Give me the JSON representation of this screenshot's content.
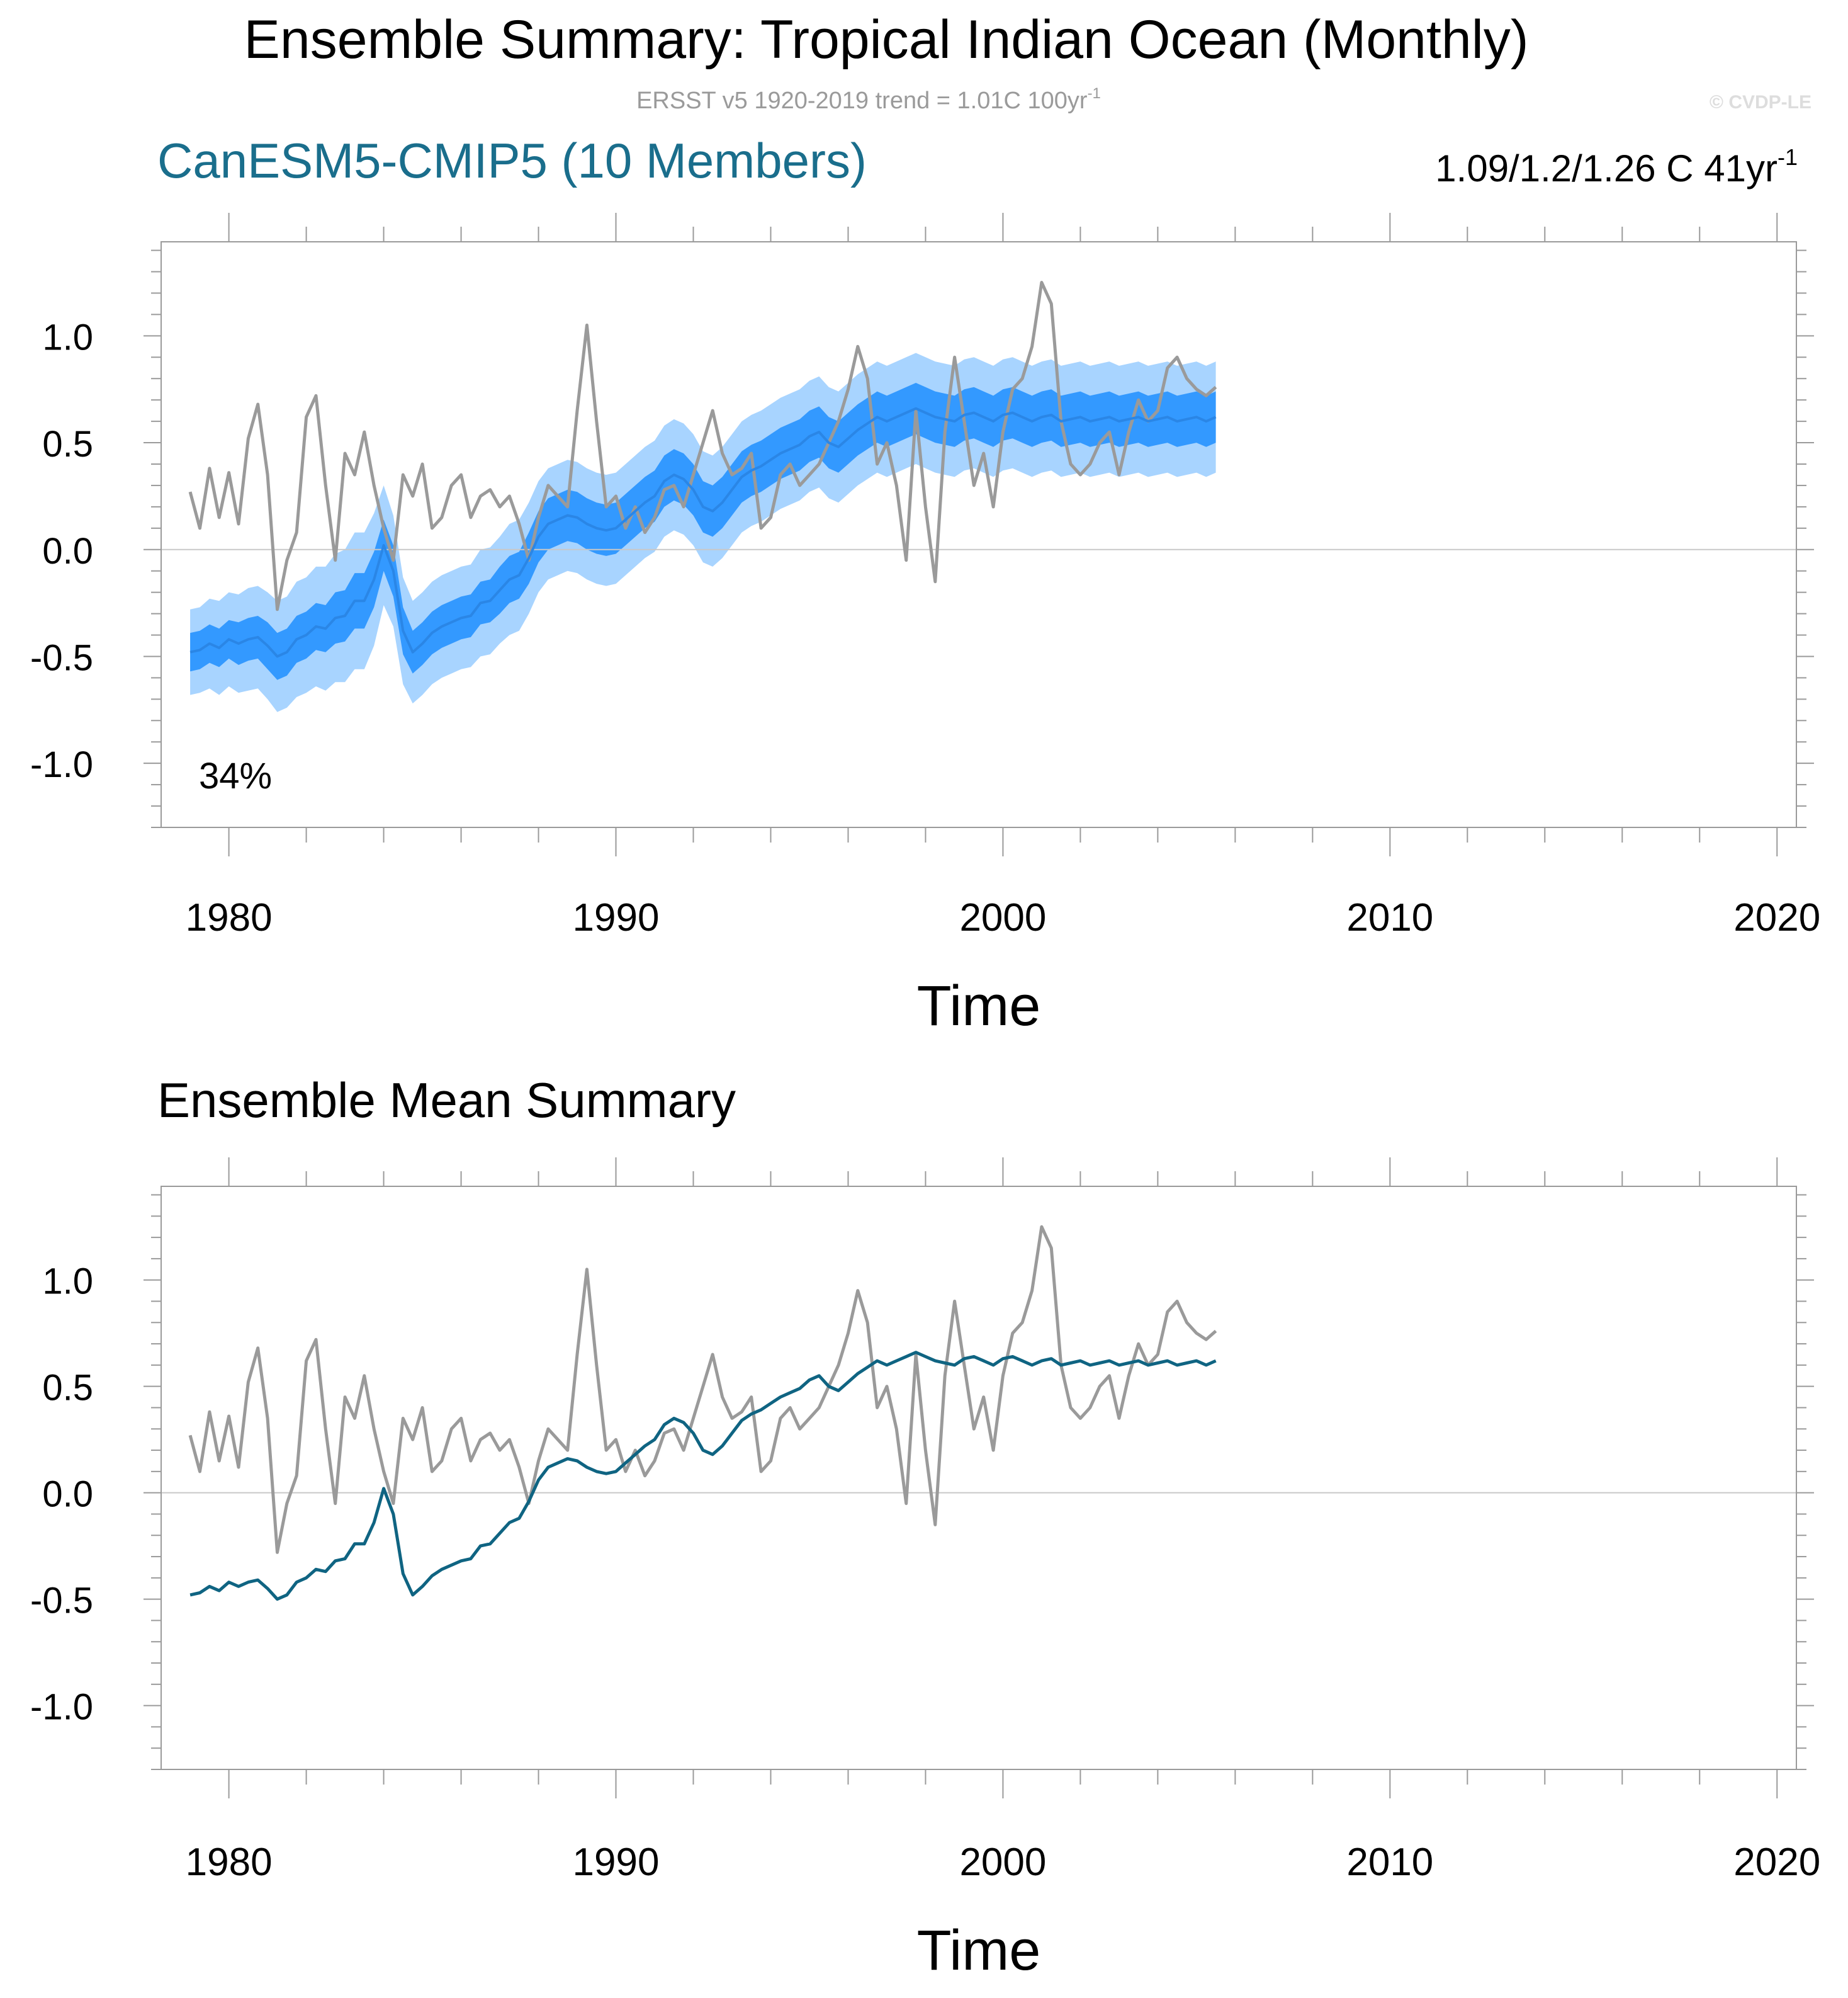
{
  "header": {
    "title": "Ensemble Summary: Tropical Indian Ocean (Monthly)",
    "subtitle_main": "ERSST v5 1920-2019 trend = 1.01C 100yr",
    "subtitle_sup": "-1",
    "watermark": "© CVDP-LE"
  },
  "colors": {
    "obs": "#9a9a9a",
    "spread_outer": "#a8d4ff",
    "spread_inner": "#3399ff",
    "ens_mean_top": "#2a86e6",
    "ens_mean_bottom": "#0f6482",
    "model_title": "#1a6e8c",
    "zero_line": "#c8c8c8",
    "frame": "#9a9a9a"
  },
  "chart_data": [
    {
      "type": "line",
      "panel": "top",
      "model_title": "CanESM5-CMIP5 (10 Members)",
      "trend_text_main": "1.09/1.2/1.26 C 41yr",
      "trend_text_sup": "-1",
      "annotation": "34%",
      "xlabel": "Time",
      "ylabel": "",
      "xlim": [
        1978.25,
        2020.5
      ],
      "ylim": [
        -1.3,
        1.44
      ],
      "xticks": [
        1980,
        1990,
        2000,
        2010,
        2020
      ],
      "xtick_labels": [
        "1980",
        "1990",
        "2000",
        "2010",
        "2020"
      ],
      "yticks": [
        -1.0,
        -0.5,
        0.0,
        0.5,
        1.0
      ],
      "ytick_labels": [
        "-1.0",
        "-0.5",
        "0.0",
        "0.5",
        "1.0"
      ],
      "series": [
        {
          "name": "ERSST v5 observations",
          "color": "gray"
        },
        {
          "name": "Ensemble 10-90% range",
          "color": "light blue",
          "kind": "band"
        },
        {
          "name": "Ensemble 25-75% range",
          "color": "blue",
          "kind": "band"
        },
        {
          "name": "Ensemble mean",
          "color": "blue"
        }
      ]
    },
    {
      "type": "line",
      "panel": "bottom",
      "title": "Ensemble Mean Summary",
      "xlabel": "Time",
      "ylabel": "",
      "xlim": [
        1978.25,
        2020.5
      ],
      "ylim": [
        -1.3,
        1.44
      ],
      "xticks": [
        1980,
        1990,
        2000,
        2010,
        2020
      ],
      "xtick_labels": [
        "1980",
        "1990",
        "2000",
        "2010",
        "2020"
      ],
      "yticks": [
        -1.0,
        -0.5,
        0.0,
        0.5,
        1.0
      ],
      "ytick_labels": [
        "-1.0",
        "-0.5",
        "0.0",
        "0.5",
        "1.0"
      ],
      "series": [
        {
          "name": "ERSST v5 observations",
          "color": "gray"
        },
        {
          "name": "Ensemble mean",
          "color": "dark teal"
        }
      ]
    }
  ],
  "series_data": {
    "x_start": 1979.0,
    "x_step": 0.25,
    "obs": [
      0.27,
      0.1,
      0.38,
      0.15,
      0.36,
      0.12,
      0.52,
      0.68,
      0.35,
      -0.28,
      -0.05,
      0.08,
      0.62,
      0.72,
      0.3,
      -0.05,
      0.45,
      0.35,
      0.55,
      0.3,
      0.1,
      -0.05,
      0.35,
      0.25,
      0.4,
      0.1,
      0.15,
      0.3,
      0.35,
      0.15,
      0.25,
      0.28,
      0.2,
      0.25,
      0.12,
      -0.05,
      0.15,
      0.3,
      0.25,
      0.2,
      0.65,
      1.05,
      0.6,
      0.2,
      0.25,
      0.1,
      0.2,
      0.08,
      0.15,
      0.28,
      0.3,
      0.2,
      0.35,
      0.5,
      0.65,
      0.45,
      0.35,
      0.38,
      0.45,
      0.1,
      0.15,
      0.35,
      0.4,
      0.3,
      0.35,
      0.4,
      0.5,
      0.6,
      0.75,
      0.95,
      0.8,
      0.4,
      0.5,
      0.3,
      -0.05,
      0.65,
      0.2,
      -0.15,
      0.55,
      0.9,
      0.6,
      0.3,
      0.45,
      0.2,
      0.55,
      0.75,
      0.8,
      0.95,
      1.25,
      1.15,
      0.6,
      0.4,
      0.35,
      0.4,
      0.5,
      0.55,
      0.35,
      0.55,
      0.7,
      0.6,
      0.65,
      0.85,
      0.9,
      0.8,
      0.75,
      0.72,
      0.76
    ],
    "ens_mean": [
      -0.48,
      -0.47,
      -0.44,
      -0.46,
      -0.42,
      -0.44,
      -0.42,
      -0.41,
      -0.45,
      -0.5,
      -0.48,
      -0.42,
      -0.4,
      -0.36,
      -0.37,
      -0.32,
      -0.31,
      -0.24,
      -0.24,
      -0.14,
      0.02,
      -0.1,
      -0.38,
      -0.48,
      -0.44,
      -0.39,
      -0.36,
      -0.34,
      -0.32,
      -0.31,
      -0.25,
      -0.24,
      -0.19,
      -0.14,
      -0.12,
      -0.04,
      0.06,
      0.12,
      0.14,
      0.16,
      0.15,
      0.12,
      0.1,
      0.09,
      0.1,
      0.14,
      0.18,
      0.22,
      0.25,
      0.32,
      0.35,
      0.33,
      0.28,
      0.2,
      0.18,
      0.22,
      0.28,
      0.34,
      0.37,
      0.39,
      0.42,
      0.45,
      0.47,
      0.49,
      0.53,
      0.55,
      0.5,
      0.48,
      0.52,
      0.56,
      0.59,
      0.62,
      0.6,
      0.62,
      0.64,
      0.66,
      0.64,
      0.62,
      0.61,
      0.6,
      0.63,
      0.64,
      0.62,
      0.6,
      0.63,
      0.64,
      0.62,
      0.6,
      0.62,
      0.63,
      0.6,
      0.61,
      0.62,
      0.6,
      0.61,
      0.62,
      0.6,
      0.61,
      0.62,
      0.6,
      0.61,
      0.62,
      0.6,
      0.61,
      0.62,
      0.6,
      0.62
    ],
    "inner_halfwidth": [
      0.09,
      0.09,
      0.09,
      0.09,
      0.09,
      0.1,
      0.1,
      0.1,
      0.11,
      0.11,
      0.11,
      0.11,
      0.11,
      0.11,
      0.11,
      0.12,
      0.12,
      0.13,
      0.13,
      0.13,
      0.12,
      0.12,
      0.11,
      0.1,
      0.1,
      0.1,
      0.1,
      0.1,
      0.1,
      0.1,
      0.1,
      0.1,
      0.11,
      0.11,
      0.11,
      0.12,
      0.12,
      0.12,
      0.12,
      0.12,
      0.12,
      0.12,
      0.12,
      0.12,
      0.12,
      0.12,
      0.12,
      0.12,
      0.12,
      0.12,
      0.12,
      0.12,
      0.12,
      0.12,
      0.12,
      0.12,
      0.12,
      0.12,
      0.12,
      0.12,
      0.12,
      0.12,
      0.12,
      0.12,
      0.12,
      0.12,
      0.12,
      0.12,
      0.12,
      0.12,
      0.12,
      0.12,
      0.12,
      0.12,
      0.12,
      0.12,
      0.12,
      0.12,
      0.12,
      0.12,
      0.12,
      0.12,
      0.12,
      0.12,
      0.12,
      0.12,
      0.12,
      0.12,
      0.12,
      0.12,
      0.12,
      0.12,
      0.12,
      0.12,
      0.12,
      0.12,
      0.12,
      0.12,
      0.12,
      0.12,
      0.12,
      0.12,
      0.12,
      0.12,
      0.12,
      0.12,
      0.12
    ],
    "outer_halfwidth": [
      0.2,
      0.2,
      0.21,
      0.22,
      0.22,
      0.23,
      0.24,
      0.24,
      0.25,
      0.26,
      0.26,
      0.27,
      0.27,
      0.28,
      0.29,
      0.3,
      0.31,
      0.32,
      0.32,
      0.31,
      0.28,
      0.26,
      0.25,
      0.24,
      0.24,
      0.24,
      0.24,
      0.24,
      0.24,
      0.24,
      0.25,
      0.25,
      0.25,
      0.26,
      0.26,
      0.26,
      0.26,
      0.26,
      0.26,
      0.26,
      0.26,
      0.26,
      0.26,
      0.26,
      0.26,
      0.26,
      0.26,
      0.26,
      0.26,
      0.26,
      0.26,
      0.26,
      0.26,
      0.26,
      0.26,
      0.26,
      0.26,
      0.26,
      0.26,
      0.26,
      0.26,
      0.26,
      0.26,
      0.26,
      0.26,
      0.26,
      0.26,
      0.26,
      0.26,
      0.26,
      0.26,
      0.26,
      0.26,
      0.26,
      0.26,
      0.26,
      0.26,
      0.26,
      0.26,
      0.26,
      0.26,
      0.26,
      0.26,
      0.26,
      0.26,
      0.26,
      0.26,
      0.26,
      0.26,
      0.26,
      0.26,
      0.26,
      0.26,
      0.26,
      0.26,
      0.26,
      0.26,
      0.26,
      0.26,
      0.26,
      0.26,
      0.26,
      0.26,
      0.26,
      0.26,
      0.26,
      0.26
    ]
  }
}
